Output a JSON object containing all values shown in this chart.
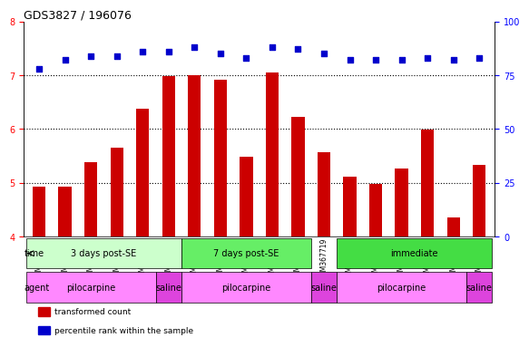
{
  "title": "GDS3827 / 196076",
  "samples": [
    "GSM367527",
    "GSM367528",
    "GSM367531",
    "GSM367532",
    "GSM367534",
    "GSM367718",
    "GSM367536",
    "GSM367538",
    "GSM367539",
    "GSM367540",
    "GSM367541",
    "GSM367719",
    "GSM367545",
    "GSM367546",
    "GSM367548",
    "GSM367549",
    "GSM367551",
    "GSM367721"
  ],
  "bar_values": [
    4.93,
    4.92,
    5.38,
    5.65,
    6.37,
    6.98,
    7.0,
    6.92,
    5.48,
    7.05,
    6.22,
    5.57,
    5.12,
    4.97,
    5.27,
    5.98,
    4.35,
    5.33
  ],
  "percentile_values": [
    78,
    82,
    84,
    84,
    86,
    86,
    88,
    85,
    83,
    88,
    87,
    85,
    82,
    82,
    82,
    83,
    82,
    83
  ],
  "bar_color": "#cc0000",
  "dot_color": "#0000cc",
  "ylim_left": [
    4,
    8
  ],
  "ylim_right": [
    0,
    100
  ],
  "yticks_left": [
    4,
    5,
    6,
    7,
    8
  ],
  "yticks_right": [
    0,
    25,
    50,
    75,
    100
  ],
  "grid_values": [
    5,
    6,
    7
  ],
  "time_groups": [
    {
      "label": "3 days post-SE",
      "start": 0,
      "end": 5,
      "color": "#ccffcc"
    },
    {
      "label": "7 days post-SE",
      "start": 6,
      "end": 10,
      "color": "#66ee66"
    },
    {
      "label": "immediate",
      "start": 12,
      "end": 16,
      "color": "#44dd44"
    }
  ],
  "agent_groups": [
    {
      "label": "pilocarpine",
      "start": 0,
      "end": 4,
      "color": "#ff88ff"
    },
    {
      "label": "saline",
      "start": 5,
      "end": 5,
      "color": "#ee44ee"
    },
    {
      "label": "pilocarpine",
      "start": 6,
      "end": 10,
      "color": "#ff88ff"
    },
    {
      "label": "saline",
      "start": 11,
      "end": 11,
      "color": "#ee44ee"
    },
    {
      "label": "pilocarpine",
      "start": 12,
      "end": 16,
      "color": "#ff88ff"
    },
    {
      "label": "saline",
      "start": 17,
      "end": 17,
      "color": "#ee44ee"
    }
  ],
  "time_row_label": "time",
  "agent_row_label": "agent",
  "legend_items": [
    {
      "label": "transformed count",
      "color": "#cc0000"
    },
    {
      "label": "percentile rank within the sample",
      "color": "#0000cc"
    }
  ],
  "bg_color": "#ffffff",
  "tick_area_bg": "#dddddd"
}
